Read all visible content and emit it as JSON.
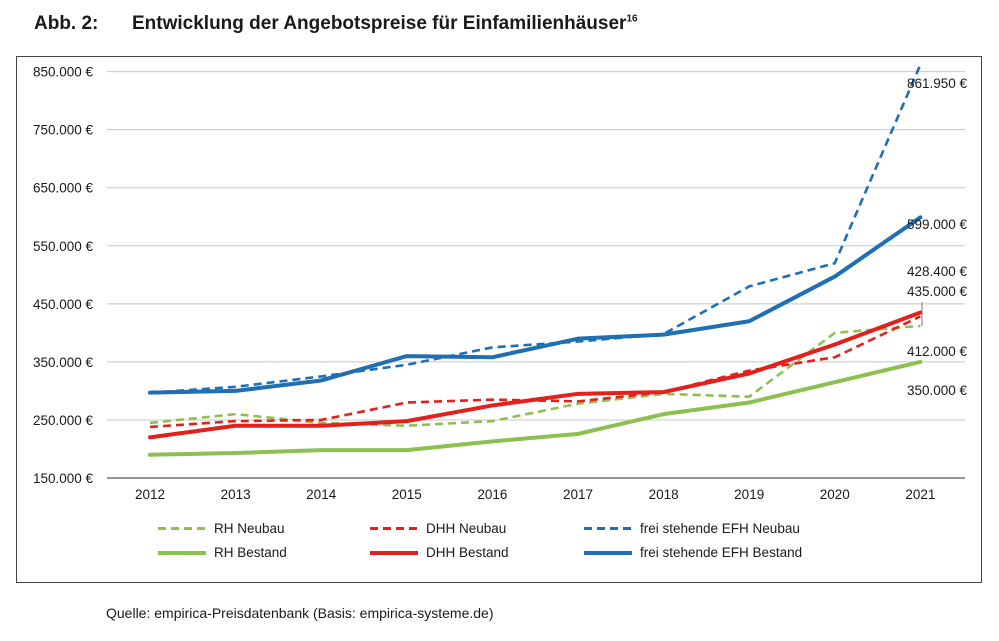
{
  "header": {
    "figure_number": "Abb. 2:",
    "title": "Entwicklung der Angebotspreise für Einfamilienhäuser",
    "footnote_ref": "16"
  },
  "footer": {
    "source": "Quelle: empirica-Preisdatenbank (Basis: empirica-systeme.de)"
  },
  "chart_data": {
    "type": "line",
    "title": "Entwicklung der Angebotspreise für Einfamilienhäuser",
    "xlabel": "",
    "ylabel": "",
    "categories": [
      "2012",
      "2013",
      "2014",
      "2015",
      "2016",
      "2017",
      "2018",
      "2019",
      "2020",
      "2021"
    ],
    "ylim": [
      150000,
      870000
    ],
    "yticks": [
      150000,
      250000,
      350000,
      450000,
      550000,
      650000,
      750000,
      850000
    ],
    "ytick_labels": [
      "150.000 €",
      "250.000 €",
      "350.000 €",
      "450.000 €",
      "550.000 €",
      "650.000 €",
      "750.000 €",
      "850.000 €"
    ],
    "grid": "horizontal",
    "legend_position": "bottom",
    "series": [
      {
        "name": "RH Neubau",
        "style": "dashed",
        "color": "#8dc051",
        "values": [
          245000,
          260000,
          245000,
          240000,
          248000,
          278000,
          295000,
          290000,
          400000,
          412000
        ]
      },
      {
        "name": "DHH Neubau",
        "style": "dashed",
        "color": "#e3201b",
        "values": [
          238000,
          248000,
          250000,
          280000,
          285000,
          282000,
          298000,
          335000,
          358000,
          428400
        ]
      },
      {
        "name": "frei stehende EFH Neubau",
        "style": "dashed",
        "color": "#1f6fb2",
        "values": [
          297000,
          307000,
          325000,
          345000,
          375000,
          385000,
          398000,
          480000,
          520000,
          861950
        ]
      },
      {
        "name": "RH Bestand",
        "style": "solid",
        "color": "#8dc051",
        "values": [
          190000,
          193000,
          198000,
          198000,
          213000,
          226000,
          260000,
          280000,
          315000,
          350000
        ]
      },
      {
        "name": "DHH Bestand",
        "style": "solid",
        "color": "#e3201b",
        "values": [
          220000,
          240000,
          240000,
          248000,
          275000,
          295000,
          298000,
          330000,
          380000,
          435000
        ]
      },
      {
        "name": "frei stehende EFH Bestand",
        "style": "solid",
        "color": "#1f6fb2",
        "values": [
          297000,
          300000,
          318000,
          360000,
          358000,
          390000,
          397000,
          420000,
          497000,
          599000
        ]
      }
    ],
    "annotations": [
      {
        "label": "861.950 €",
        "series": "frei stehende EFH Neubau"
      },
      {
        "label": "599.000 €",
        "series": "frei stehende EFH Bestand"
      },
      {
        "label": "428.400 €",
        "series": "DHH Neubau"
      },
      {
        "label": "435.000 €",
        "series": "DHH Bestand"
      },
      {
        "label": "412.000 €",
        "series": "RH Neubau"
      },
      {
        "label": "350.000 €",
        "series": "RH Bestand"
      }
    ]
  }
}
